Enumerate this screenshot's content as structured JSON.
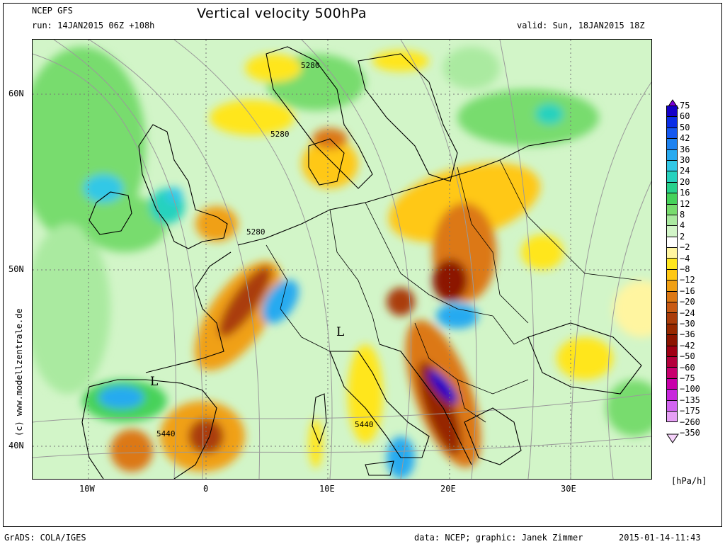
{
  "header": {
    "model": "NCEP GFS",
    "run": "run: 14JAN2015 06Z +108h",
    "title": "Vertical velocity 500hPa",
    "valid": "valid: Sun, 18JAN2015 18Z"
  },
  "axes": {
    "lat_labels": [
      "60N",
      "50N",
      "40N"
    ],
    "lon_labels": [
      "10W",
      "0",
      "10E",
      "20E",
      "30E"
    ]
  },
  "contour_labels": [
    "5280",
    "5280",
    "5280",
    "5440",
    "5440"
  ],
  "pressure_markers": [
    "L",
    "L"
  ],
  "legend": {
    "units": "[hPa/h]",
    "entries": [
      {
        "label": "75",
        "color": "#7a00d8"
      },
      {
        "label": "60",
        "color": "#1400c8"
      },
      {
        "label": "50",
        "color": "#0a2ee6"
      },
      {
        "label": "42",
        "color": "#1458f0"
      },
      {
        "label": "36",
        "color": "#1e82f0"
      },
      {
        "label": "30",
        "color": "#28aaf0"
      },
      {
        "label": "24",
        "color": "#32c8e6"
      },
      {
        "label": "20",
        "color": "#28d2be"
      },
      {
        "label": "16",
        "color": "#28d28c"
      },
      {
        "label": "12",
        "color": "#46d25a"
      },
      {
        "label": "8",
        "color": "#78dc6e"
      },
      {
        "label": "4",
        "color": "#aaeaa0"
      },
      {
        "label": "2",
        "color": "#d2f5c8"
      },
      {
        "label": "-2",
        "color": "#ffffff"
      },
      {
        "label": "-4",
        "color": "#fff5a0"
      },
      {
        "label": "-8",
        "color": "#ffe61e"
      },
      {
        "label": "-12",
        "color": "#ffc814"
      },
      {
        "label": "-16",
        "color": "#f0a014"
      },
      {
        "label": "-20",
        "color": "#dc7814"
      },
      {
        "label": "-24",
        "color": "#c85a14"
      },
      {
        "label": "-30",
        "color": "#aa3c0a"
      },
      {
        "label": "-36",
        "color": "#962800"
      },
      {
        "label": "-42",
        "color": "#8c1400"
      },
      {
        "label": "-50",
        "color": "#a00014"
      },
      {
        "label": "-60",
        "color": "#b4003c"
      },
      {
        "label": "-75",
        "color": "#c8006e"
      },
      {
        "label": "-100",
        "color": "#c800aa"
      },
      {
        "label": "-135",
        "color": "#c828dc"
      },
      {
        "label": "-175",
        "color": "#d264f0"
      },
      {
        "label": "-260",
        "color": "#e6a0f5"
      },
      {
        "label": "-350",
        "color": "#f5d2fa"
      }
    ]
  },
  "footer": {
    "left": "GrADS: COLA/IGES",
    "center": "data: NCEP; graphic: Janek Zimmer",
    "right": "2015-01-14-11:43"
  },
  "side_text": "(c) www.modellzentrale.de"
}
